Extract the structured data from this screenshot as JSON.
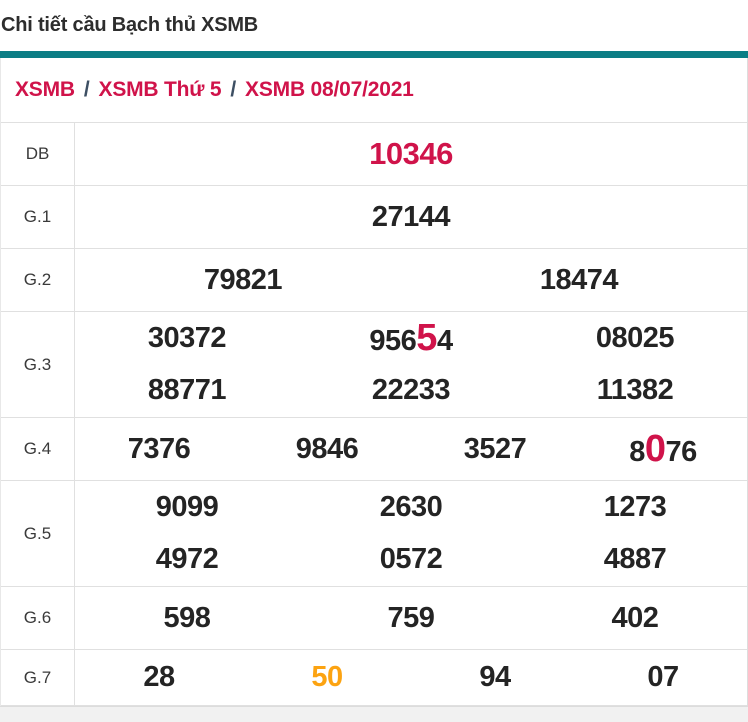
{
  "header": {
    "title": "Chi tiết cầu Bạch thủ XSMB"
  },
  "colors": {
    "accent_teal": "#0b7d85",
    "highlight_red": "#d0134a",
    "highlight_orange": "#fca311",
    "breadcrumb_separator": "#3d4f63",
    "number_text": "#242424",
    "grid_border": "#e0e0e0"
  },
  "breadcrumb": {
    "separator": "/",
    "items": [
      {
        "label": "XSMB"
      },
      {
        "label": "XSMB Thứ 5"
      },
      {
        "label": "XSMB 08/07/2021"
      }
    ]
  },
  "table": {
    "rows": [
      {
        "label": "DB",
        "lines": [
          [
            [
              {
                "text": "10346",
                "color": "red",
                "size": "xl"
              }
            ]
          ]
        ]
      },
      {
        "label": "G.1",
        "lines": [
          [
            [
              {
                "text": "27144"
              }
            ]
          ]
        ]
      },
      {
        "label": "G.2",
        "lines": [
          [
            [
              {
                "text": "79821"
              }
            ],
            [
              {
                "text": "18474"
              }
            ]
          ]
        ]
      },
      {
        "label": "G.3",
        "lines": [
          [
            [
              {
                "text": "30372"
              }
            ],
            [
              {
                "text": "956"
              },
              {
                "text": "5",
                "color": "red",
                "big": true
              },
              {
                "text": "4"
              }
            ],
            [
              {
                "text": "08025"
              }
            ]
          ],
          [
            [
              {
                "text": "88771"
              }
            ],
            [
              {
                "text": "22233"
              }
            ],
            [
              {
                "text": "11382"
              }
            ]
          ]
        ]
      },
      {
        "label": "G.4",
        "lines": [
          [
            [
              {
                "text": "7376"
              }
            ],
            [
              {
                "text": "9846"
              }
            ],
            [
              {
                "text": "3527"
              }
            ],
            [
              {
                "text": "8"
              },
              {
                "text": "0",
                "color": "red",
                "big": true
              },
              {
                "text": "76"
              }
            ]
          ]
        ]
      },
      {
        "label": "G.5",
        "lines": [
          [
            [
              {
                "text": "9099"
              }
            ],
            [
              {
                "text": "2630"
              }
            ],
            [
              {
                "text": "1273"
              }
            ]
          ],
          [
            [
              {
                "text": "4972"
              }
            ],
            [
              {
                "text": "0572"
              }
            ],
            [
              {
                "text": "4887"
              }
            ]
          ]
        ]
      },
      {
        "label": "G.6",
        "lines": [
          [
            [
              {
                "text": "598"
              }
            ],
            [
              {
                "text": "759"
              }
            ],
            [
              {
                "text": "402"
              }
            ]
          ]
        ]
      },
      {
        "label": "G.7",
        "lines": [
          [
            [
              {
                "text": "28"
              }
            ],
            [
              {
                "text": "50",
                "color": "orange"
              }
            ],
            [
              {
                "text": "94"
              }
            ],
            [
              {
                "text": "07"
              }
            ]
          ]
        ]
      }
    ]
  }
}
